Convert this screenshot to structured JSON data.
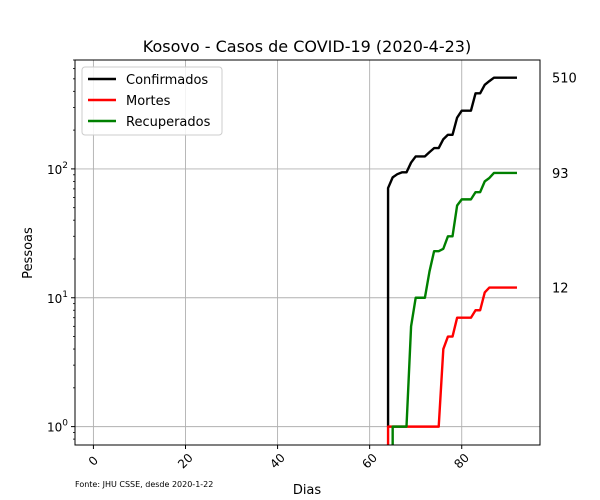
{
  "chart_data": {
    "type": "line",
    "title": "Kosovo - Casos de COVID-19 (2020-4-23)",
    "xlabel": "Dias",
    "ylabel": "Pessoas",
    "source": "Fonte: JHU CSSE, desde 2020-1-22",
    "y_scale": "log",
    "grid": true,
    "legend_position": "top-left",
    "xlim": [
      -4,
      97
    ],
    "ylim": [
      0.72,
      700
    ],
    "x_ticks": [
      0,
      20,
      40,
      60,
      80
    ],
    "y_ticks": [
      {
        "value": 1,
        "label": "10^0"
      },
      {
        "value": 10,
        "label": "10^1"
      },
      {
        "value": 100,
        "label": "10^2"
      }
    ],
    "series": [
      {
        "name": "Confirmados",
        "color": "#000000",
        "end_label": "510",
        "x": [
          64,
          64,
          65,
          66,
          67,
          68,
          69,
          70,
          71,
          72,
          73,
          74,
          75,
          76,
          77,
          78,
          79,
          80,
          81,
          82,
          83,
          84,
          85,
          86,
          87,
          88,
          89,
          90,
          91,
          92
        ],
        "y": [
          1,
          71,
          86,
          91,
          94,
          94,
          112,
          125,
          125,
          125,
          135,
          145,
          145,
          170,
          184,
          184,
          250,
          283,
          283,
          283,
          386,
          386,
          449,
          480,
          510,
          510,
          510,
          510,
          510,
          510
        ]
      },
      {
        "name": "Mortes",
        "color": "#ff0000",
        "end_label": "12",
        "x": [
          64,
          64,
          65,
          66,
          67,
          68,
          69,
          70,
          71,
          72,
          73,
          74,
          75,
          76,
          77,
          78,
          79,
          80,
          81,
          82,
          83,
          84,
          85,
          86,
          87,
          88,
          89,
          90,
          91,
          92
        ],
        "y": [
          0.72,
          1,
          1,
          1,
          1,
          1,
          1,
          1,
          1,
          1,
          1,
          1,
          1,
          4,
          5,
          5,
          7,
          7,
          7,
          7,
          8,
          8,
          11,
          12,
          12,
          12,
          12,
          12,
          12,
          12
        ]
      },
      {
        "name": "Recuperados",
        "color": "#008000",
        "end_label": "93",
        "x": [
          65,
          65,
          66,
          67,
          68,
          69,
          70,
          71,
          72,
          73,
          74,
          75,
          76,
          77,
          78,
          79,
          80,
          81,
          82,
          83,
          84,
          85,
          86,
          87,
          88,
          89,
          90,
          91,
          92
        ],
        "y": [
          0.72,
          1,
          1,
          1,
          1,
          6,
          10,
          10,
          10,
          16,
          23,
          23,
          24,
          30,
          30,
          52,
          58,
          58,
          58,
          66,
          66,
          80,
          85,
          93,
          93,
          93,
          93,
          93,
          93
        ]
      }
    ]
  }
}
